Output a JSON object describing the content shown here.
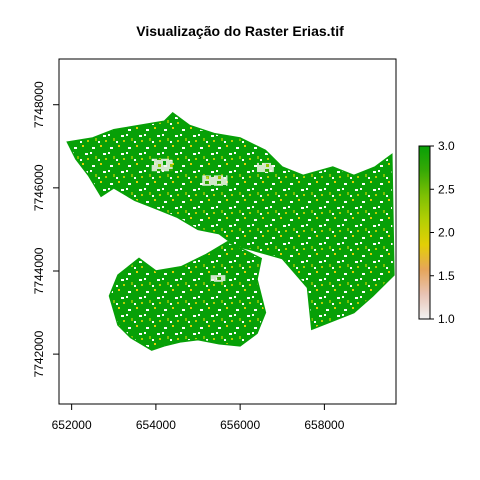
{
  "chart_data": {
    "type": "heatmap",
    "title": "Visualização do Raster Erias.tif",
    "xlabel": "",
    "ylabel": "",
    "xlim": [
      651700,
      659700
    ],
    "ylim": [
      7740800,
      7749100
    ],
    "x_ticks": [
      {
        "value": 652000,
        "label": "652000"
      },
      {
        "value": 654000,
        "label": "654000"
      },
      {
        "value": 656000,
        "label": "656000"
      },
      {
        "value": 658000,
        "label": "658000"
      }
    ],
    "y_ticks": [
      {
        "value": 7742000,
        "label": "7742000"
      },
      {
        "value": 7744000,
        "label": "7744000"
      },
      {
        "value": 7746000,
        "label": "7746000"
      },
      {
        "value": 7748000,
        "label": "7748000"
      }
    ],
    "raster_values": [
      1,
      2,
      3
    ],
    "dominant_value": 3,
    "colorbar": {
      "min": 1.0,
      "max": 3.0,
      "ticks": [
        {
          "value": 1.0,
          "label": "1.0"
        },
        {
          "value": 1.5,
          "label": "1.5"
        },
        {
          "value": 2.0,
          "label": "2.0"
        },
        {
          "value": 2.5,
          "label": "2.5"
        },
        {
          "value": 3.0,
          "label": "3.0"
        }
      ],
      "colors": [
        "#f2f2f2",
        "#e8c3b4",
        "#e6a55a",
        "#e3cf06",
        "#b4cf04",
        "#7dc004",
        "#37a905",
        "#07a007"
      ]
    },
    "regions": [
      {
        "name": "northern-lobe",
        "outline": [
          [
            651900,
            7747100
          ],
          [
            652500,
            7747200
          ],
          [
            653000,
            7747400
          ],
          [
            653600,
            7747500
          ],
          [
            654200,
            7747600
          ],
          [
            654400,
            7747800
          ],
          [
            654800,
            7747500
          ],
          [
            655400,
            7747300
          ],
          [
            656000,
            7747200
          ],
          [
            656600,
            7746900
          ],
          [
            657000,
            7746500
          ],
          [
            657500,
            7746300
          ],
          [
            658200,
            7746500
          ],
          [
            658700,
            7746300
          ],
          [
            659200,
            7746500
          ],
          [
            659600,
            7746800
          ],
          [
            659650,
            7743900
          ],
          [
            659150,
            7743400
          ],
          [
            658700,
            7743000
          ],
          [
            658200,
            7742800
          ],
          [
            657700,
            7742600
          ],
          [
            657600,
            7743600
          ],
          [
            657000,
            7744300
          ],
          [
            656300,
            7744500
          ],
          [
            655900,
            7744600
          ],
          [
            655500,
            7744900
          ],
          [
            655000,
            7745000
          ],
          [
            654500,
            7745300
          ],
          [
            654000,
            7745500
          ],
          [
            653500,
            7745700
          ],
          [
            653000,
            7746000
          ],
          [
            652700,
            7745800
          ],
          [
            652400,
            7746300
          ],
          [
            652100,
            7746700
          ]
        ]
      },
      {
        "name": "southern-lobe",
        "outline": [
          [
            652900,
            7743400
          ],
          [
            653100,
            7743900
          ],
          [
            653600,
            7744300
          ],
          [
            654000,
            7744000
          ],
          [
            654600,
            7744100
          ],
          [
            655200,
            7744400
          ],
          [
            655700,
            7744700
          ],
          [
            656100,
            7744500
          ],
          [
            656500,
            7744300
          ],
          [
            656400,
            7743800
          ],
          [
            656600,
            7743000
          ],
          [
            656400,
            7742500
          ],
          [
            656000,
            7742200
          ],
          [
            655500,
            7742250
          ],
          [
            655000,
            7742350
          ],
          [
            654600,
            7742300
          ],
          [
            654200,
            7742200
          ],
          [
            653900,
            7742100
          ],
          [
            653400,
            7742400
          ],
          [
            653100,
            7742700
          ]
        ]
      }
    ]
  }
}
